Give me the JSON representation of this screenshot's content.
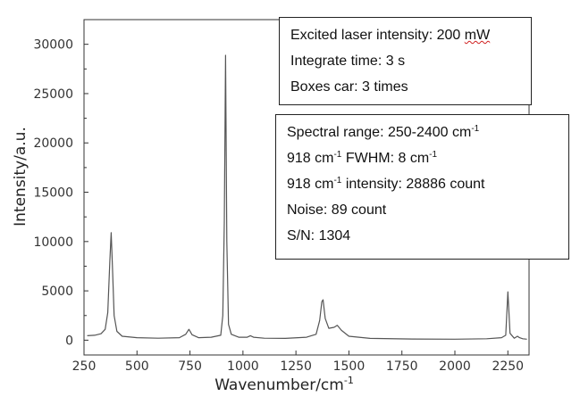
{
  "chart_data": {
    "type": "line",
    "xlabel": "Wavenumber/cm",
    "xlabel_sup": "-1",
    "ylabel": "Intensity/a.u.",
    "xlim": [
      250,
      2350
    ],
    "ylim": [
      -1500,
      32500
    ],
    "xticks": [
      250,
      500,
      750,
      1000,
      1250,
      1500,
      1750,
      2000,
      2250
    ],
    "yticks": [
      0,
      5000,
      10000,
      15000,
      20000,
      25000,
      30000
    ],
    "grid": false,
    "series": [
      {
        "color": "#555555",
        "x": [
          265,
          300,
          330,
          350,
          362,
          372,
          378,
          384,
          392,
          405,
          430,
          500,
          600,
          700,
          730,
          745,
          760,
          790,
          850,
          895,
          905,
          912,
          918,
          924,
          932,
          945,
          980,
          1020,
          1035,
          1050,
          1100,
          1200,
          1300,
          1345,
          1362,
          1372,
          1378,
          1388,
          1405,
          1430,
          1445,
          1465,
          1500,
          1600,
          1800,
          2000,
          2150,
          2220,
          2240,
          2250,
          2260,
          2280,
          2295,
          2305,
          2320,
          2340
        ],
        "y": [
          450,
          500,
          650,
          1100,
          2800,
          8000,
          10900,
          7500,
          2500,
          900,
          400,
          250,
          200,
          250,
          600,
          1100,
          550,
          250,
          300,
          500,
          2500,
          12000,
          28886,
          10000,
          1600,
          600,
          300,
          300,
          450,
          300,
          200,
          180,
          300,
          600,
          2000,
          3900,
          4100,
          2200,
          1200,
          1300,
          1500,
          1000,
          400,
          180,
          120,
          100,
          150,
          250,
          500,
          4900,
          700,
          200,
          400,
          250,
          150,
          100
        ]
      }
    ]
  },
  "box1": {
    "line1": "Excited laser intensity: 200 ",
    "line1_unit": "mW",
    "line2": "Integrate time: 3 s",
    "line3": "Boxes car: 3 times"
  },
  "box2": {
    "l1_text": "Spectral range: 250-2400 cm",
    "l1_sup": "-1",
    "l2_a": "918 cm",
    "l2_sup1": "-1",
    "l2_b": " FWHM: 8 cm",
    "l2_sup2": "-1",
    "l3_a": "918 cm",
    "l3_sup": "-1",
    "l3_b": " intensity: 28886 count",
    "l4": "Noise: 89 count",
    "l5": "S/N: 1304"
  }
}
